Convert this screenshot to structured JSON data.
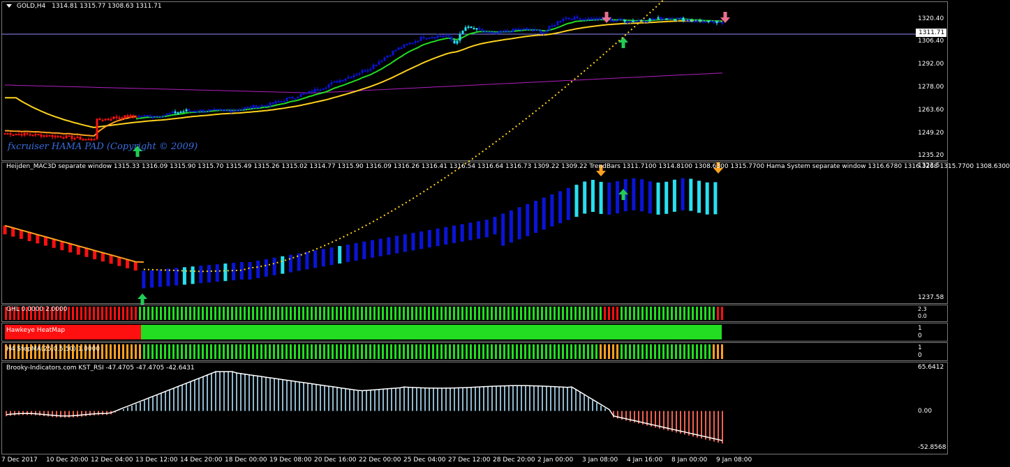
{
  "main": {
    "symbol": "GOLD,H4",
    "ohlc": "1314.81 1315.77 1308.63 1311.71",
    "current_price": "1311.71",
    "watermark": "fxcruiser HAMA PAD (Copyright © 2009)",
    "price_ticks": [
      "1320.40",
      "1306.40",
      "1292.00",
      "1278.00",
      "1263.60",
      "1249.20",
      "1235.20"
    ]
  },
  "heiken": {
    "label": "Heijden_MAC3D separate window 1315.33 1316.09 1315.90 1315.70 1315.49 1315.26 1315.02 1314.77 1315.90 1316.09 1316.26 1316.41 1316.54 1316.64 1316.73 1309.22 1309.22  TrendBars 1311.7100 1314.8100 1308.6300 1315.7700  Hama System separate window 1316.6780 1316.3268 1315.7700 1308.6300",
    "axis_top": "1323.5",
    "axis_bottom": "1237.58"
  },
  "ghl": {
    "label": "GHL 0.0000 2.0000",
    "axis_top": "2.3",
    "axis_bottom": "0.0"
  },
  "hawkeye": {
    "label": "Hawkeye HeatMap",
    "axis_top": "1",
    "axis_bottom": "0"
  },
  "stepma": {
    "label": "H4 StepMA(25,0.5,50) 1.0000",
    "axis_top": "1",
    "axis_bottom": "0"
  },
  "kst": {
    "label": "Brooky-Indicators.com KST_RSI -47.4705 -47.4705 -42.6431",
    "axis_top": "65.6412",
    "axis_mid": "0.00",
    "axis_bottom": "-52.8568"
  },
  "time_labels": [
    "7 Dec 2017",
    "10 Dec 20:00",
    "12 Dec 04:00",
    "13 Dec 12:00",
    "14 Dec 20:00",
    "18 Dec 00:00",
    "19 Dec 08:00",
    "20 Dec 16:00",
    "22 Dec 00:00",
    "25 Dec 04:00",
    "27 Dec 12:00",
    "28 Dec 20:00",
    "2 Jan 00:00",
    "3 Jan 08:00",
    "4 Jan 16:00",
    "8 Jan 00:00",
    "9 Jan 08:00"
  ],
  "colors": {
    "bull": "#0a14d8",
    "bull_light": "#28e0f0",
    "bear": "#ff1010",
    "green": "#22dd22",
    "orange": "#ffa020",
    "yellow": "#ffd21e",
    "magenta": "#b020c0",
    "kst_pos": "#8fb6cc",
    "kst_neg": "#f06050",
    "hline": "#8c8cff",
    "up_arrow": "#22cc55",
    "down_arrow_pink": "#e87090",
    "down_arrow_orange": "#ffa020"
  },
  "chart_data": {
    "type": "candlestick",
    "bars": 168,
    "y_range": [
      1235.2,
      1325.0
    ],
    "close_path_keys": [
      [
        0,
        1250
      ],
      [
        20,
        1248
      ],
      [
        30,
        1246
      ],
      [
        32,
        1247
      ],
      [
        33,
        1258
      ],
      [
        40,
        1260
      ],
      [
        55,
        1261
      ],
      [
        65,
        1264
      ],
      [
        80,
        1264
      ],
      [
        95,
        1268
      ],
      [
        110,
        1276
      ],
      [
        120,
        1283
      ],
      [
        130,
        1290
      ],
      [
        140,
        1302
      ],
      [
        150,
        1310
      ],
      [
        158,
        1311
      ],
      [
        161,
        1306
      ],
      [
        165,
        1316
      ],
      [
        175,
        1312
      ],
      [
        185,
        1315
      ],
      [
        193,
        1313
      ],
      [
        200,
        1322
      ],
      [
        212,
        1321
      ],
      [
        225,
        1320
      ],
      [
        238,
        1322
      ],
      [
        248,
        1320
      ],
      [
        258,
        1318
      ]
    ]
  }
}
